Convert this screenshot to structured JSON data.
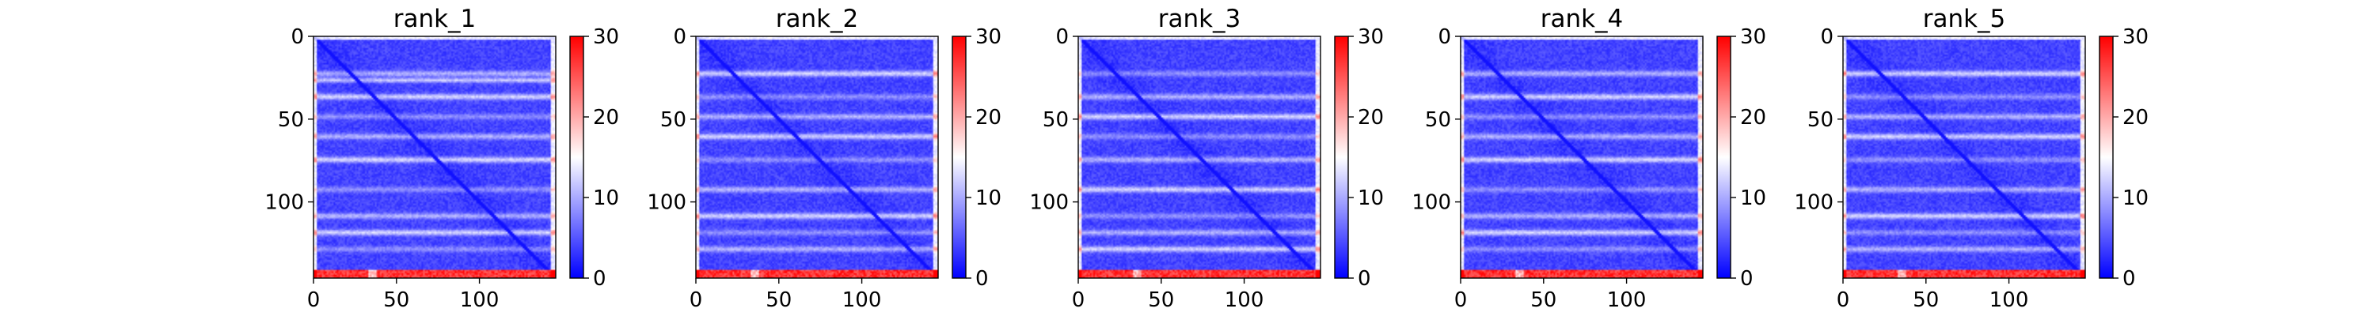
{
  "chart_data": [
    {
      "type": "heatmap",
      "title": "rank_1",
      "xticks": [
        0,
        50,
        100
      ],
      "yticks": [
        0,
        50,
        100
      ],
      "x_range": [
        0,
        146
      ],
      "y_range": [
        0,
        146
      ],
      "colorbar": {
        "ticks": [
          0,
          10,
          20,
          30
        ],
        "range": [
          0,
          30
        ],
        "cmap": "bwr"
      }
    },
    {
      "type": "heatmap",
      "title": "rank_2",
      "xticks": [
        0,
        50,
        100
      ],
      "yticks": [
        0,
        50,
        100
      ],
      "x_range": [
        0,
        146
      ],
      "y_range": [
        0,
        146
      ],
      "colorbar": {
        "ticks": [
          0,
          10,
          20,
          30
        ],
        "range": [
          0,
          30
        ],
        "cmap": "bwr"
      }
    },
    {
      "type": "heatmap",
      "title": "rank_3",
      "xticks": [
        0,
        50,
        100
      ],
      "yticks": [
        0,
        50,
        100
      ],
      "x_range": [
        0,
        146
      ],
      "y_range": [
        0,
        146
      ],
      "colorbar": {
        "ticks": [
          0,
          10,
          20,
          30
        ],
        "range": [
          0,
          30
        ],
        "cmap": "bwr"
      }
    },
    {
      "type": "heatmap",
      "title": "rank_4",
      "xticks": [
        0,
        50,
        100
      ],
      "yticks": [
        0,
        50,
        100
      ],
      "x_range": [
        0,
        146
      ],
      "y_range": [
        0,
        146
      ],
      "colorbar": {
        "ticks": [
          0,
          10,
          20,
          30
        ],
        "range": [
          0,
          30
        ],
        "cmap": "bwr"
      }
    },
    {
      "type": "heatmap",
      "title": "rank_5",
      "xticks": [
        0,
        50,
        100
      ],
      "yticks": [
        0,
        50,
        100
      ],
      "x_range": [
        0,
        146
      ],
      "y_range": [
        0,
        146
      ],
      "colorbar": {
        "ticks": [
          0,
          10,
          20,
          30
        ],
        "range": [
          0,
          30
        ],
        "cmap": "bwr"
      }
    }
  ],
  "colors": {
    "low": "#0000ff",
    "mid": "#ffffff",
    "high": "#ff0000",
    "text": "#000000"
  }
}
